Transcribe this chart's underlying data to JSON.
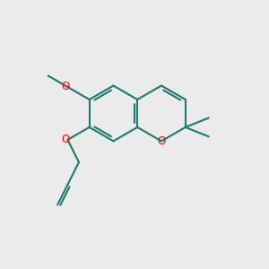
{
  "bg_color": "#ebebeb",
  "bond_color": "#1a7a6e",
  "oxygen_color": "#ff0000",
  "line_width": 1.5,
  "figsize": [
    3.0,
    3.0
  ],
  "dpi": 100,
  "xlim": [
    0,
    10
  ],
  "ylim": [
    0,
    10
  ]
}
